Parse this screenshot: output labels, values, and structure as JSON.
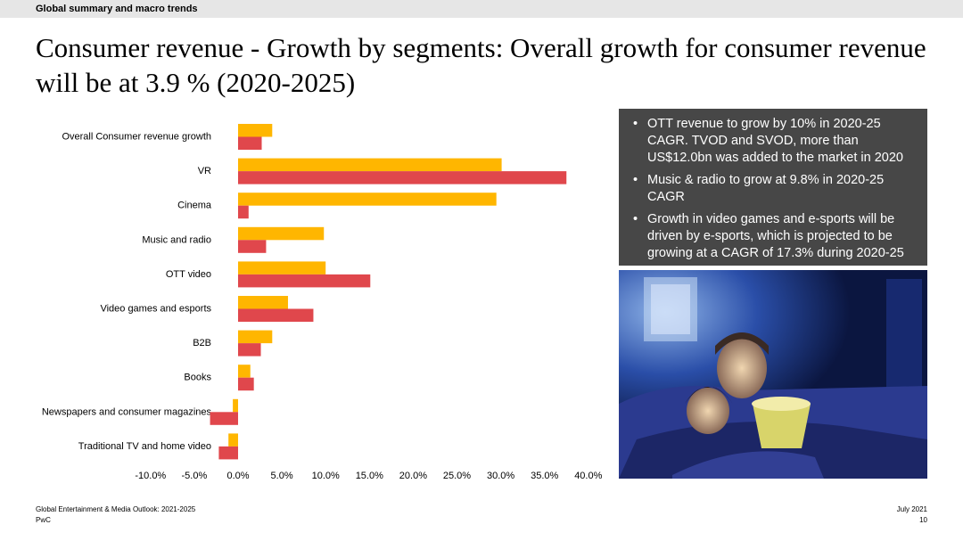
{
  "header": {
    "section_label": "Global summary and macro trends"
  },
  "title": "Consumer revenue - Growth by segments: Overall growth for consumer revenue will be at 3.9 % (2020-2025)",
  "info_box": {
    "bullets": [
      "OTT revenue to grow by 10% in 2020-25 CAGR. TVOD and SVOD, more than US$12.0bn was added to the market in 2020",
      "Music & radio to grow at 9.8% in 2020-25 CAGR",
      "Growth in video games and e-sports will be driven by e-sports, which is projected to be growing at a CAGR of 17.3% during 2020-25"
    ]
  },
  "footer": {
    "source": "Global Entertainment & Media Outlook: 2021-2025",
    "company": "PwC",
    "date": "July 2021",
    "page": "10"
  },
  "colors": {
    "series_1": "#ffb600",
    "series_2": "#e0474c"
  },
  "chart_data": {
    "type": "bar",
    "orientation": "horizontal",
    "categories": [
      "Overall Consumer revenue growth",
      "VR",
      "Cinema",
      "Music and radio",
      "OTT video",
      "Video games and esports",
      "B2B",
      "Books",
      "Newspapers and consumer magazines",
      "Traditional TV and home video"
    ],
    "series": [
      {
        "values": [
          3.9,
          30.1,
          29.5,
          9.8,
          10.0,
          5.7,
          3.9,
          1.4,
          -0.6,
          -1.1
        ]
      },
      {
        "values": [
          2.7,
          37.5,
          1.2,
          3.2,
          15.1,
          8.6,
          2.6,
          1.8,
          -3.2,
          -2.2
        ]
      }
    ],
    "xlim": [
      -10,
      40
    ],
    "xticks": [
      "-10.0%",
      "-5.0%",
      "0.0%",
      "5.0%",
      "10.0%",
      "15.0%",
      "20.0%",
      "25.0%",
      "30.0%",
      "35.0%",
      "40.0%"
    ],
    "grid": false,
    "legend": "none"
  }
}
